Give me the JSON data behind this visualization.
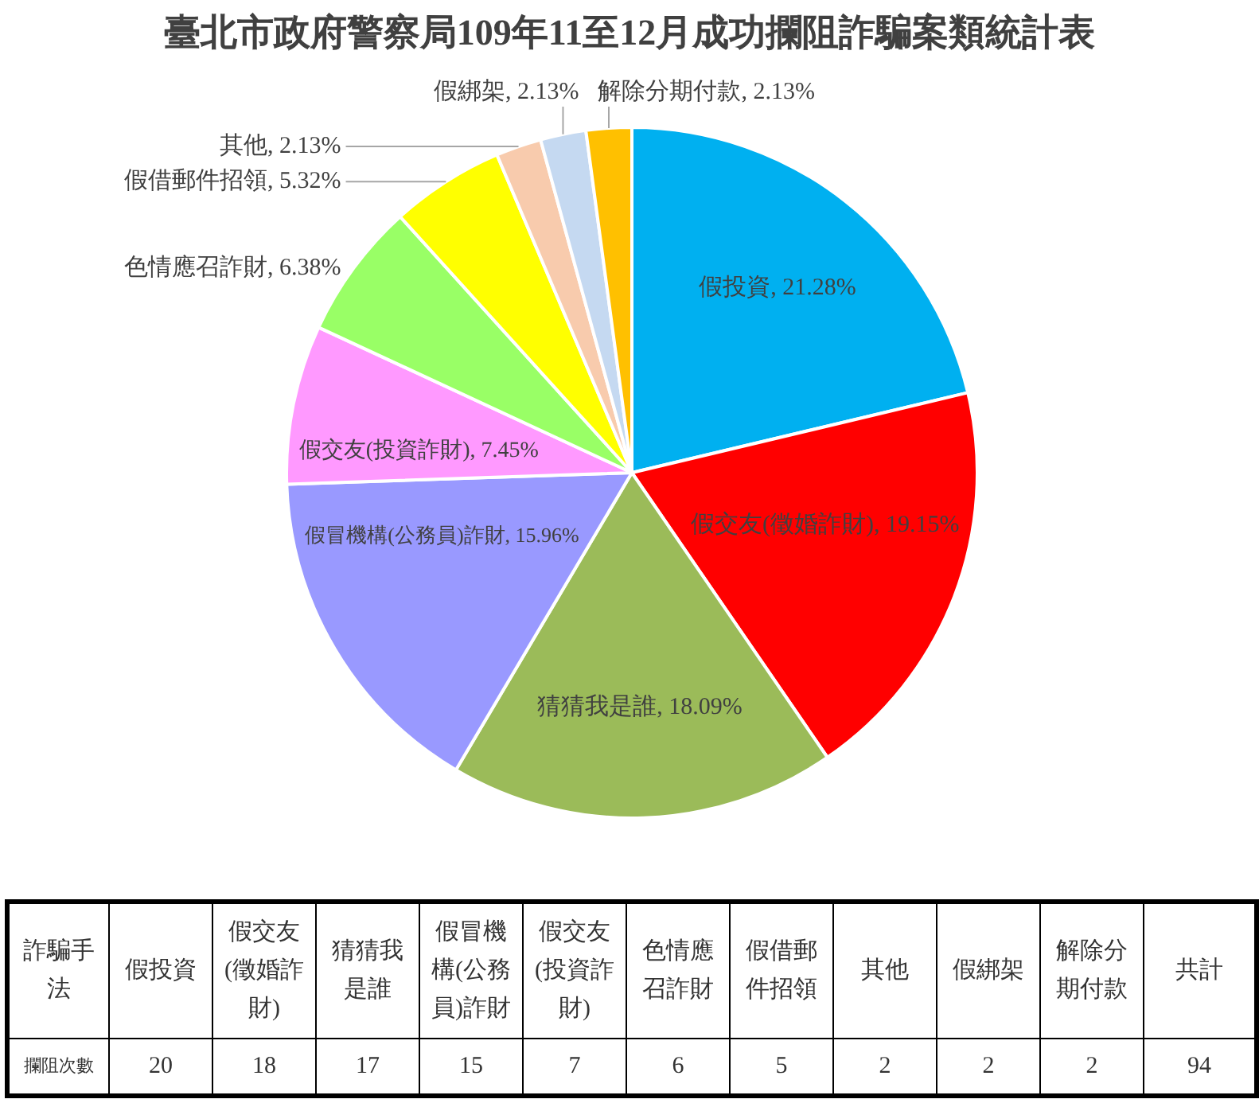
{
  "chart_data": [
    {
      "type": "pie",
      "title": "臺北市政府警察局109年11至12月成功攔阻詐騙案類統計表",
      "categories": [
        "假投資",
        "假交友(徵婚詐財)",
        "猜猜我是誰",
        "假冒機構(公務員)詐財",
        "假交友(投資詐財)",
        "色情應召詐財",
        "假借郵件招領",
        "其他",
        "假綁架",
        "解除分期付款"
      ],
      "values": [
        21.28,
        19.15,
        18.09,
        15.96,
        7.45,
        6.38,
        5.32,
        2.13,
        2.13,
        2.13
      ],
      "colors": [
        "#00b0f0",
        "#ff0000",
        "#9bbb59",
        "#9999ff",
        "#ff99ff",
        "#99ff66",
        "#ffff00",
        "#f8cbad",
        "#c5d9f1",
        "#ffc000"
      ],
      "value_labels": [
        ", 21.28%",
        ", 19.15%",
        ", 18.09%",
        ", 15.96%",
        ", 7.45%",
        ", 6.38%",
        ", 5.32%",
        ", 2.13%",
        ", 2.13%",
        ", 2.13%"
      ]
    },
    {
      "type": "other",
      "categories": [
        "假投資",
        "假交友(徵婚詐財)",
        "猜猜我是誰",
        "假冒機構(公務員)詐財",
        "假交友(投資詐財)",
        "色情應召詐財",
        "假借郵件招領",
        "其他",
        "假綁架",
        "解除分期付款"
      ],
      "values": [
        20,
        18,
        17,
        15,
        7,
        6,
        5,
        2,
        2,
        2
      ],
      "data_labels": true,
      "xlabel": "詐騙手法",
      "ylabel": "攔阻次數",
      "totals": [
        "94"
      ],
      "annotations": [
        "共計"
      ]
    }
  ]
}
